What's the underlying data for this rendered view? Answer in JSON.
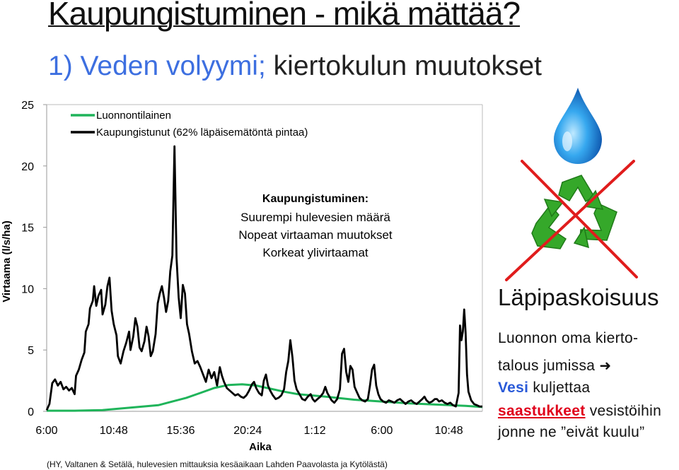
{
  "slide": {
    "title": "Kaupungistuminen - mikä mättää?",
    "subtitle_accent": "1) Veden volyymi;",
    "subtitle_rest": " kiertokulun muutokset",
    "source_note": "(HY, Valtanen & Setälä, hulevesien mittauksia kesäaikaan Lahden Paavolasta ja Kytölästä)"
  },
  "side_panel": {
    "heading": "Läpipaskoisuus",
    "line1": "Luonnon oma kierto-",
    "line2": "talous jumissa",
    "line3_word": "Vesi",
    "line3_rest": " kuljettaa",
    "line4_word": "saastukkeet",
    "line4_rest": " vesistöihin",
    "line5": "jonne ne ”eivät kuulu”",
    "icons": [
      "water-drop-icon",
      "recycle-icon",
      "cross-out-icon",
      "arrow-right-icon"
    ],
    "colors": {
      "drop": "#1a8fe0",
      "recycle": "#35a82a",
      "cross": "#e01c1c"
    }
  },
  "chart_data": {
    "type": "line",
    "xlabel": "Aika",
    "ylabel": "Virtaama (l/s/ha)",
    "x_ticks": [
      "6:00",
      "10:48",
      "15:36",
      "20:24",
      "1:12",
      "6:00",
      "10:48"
    ],
    "x_range_hours": [
      0,
      31.2
    ],
    "y_ticks": [
      "0",
      "5",
      "10",
      "15",
      "20",
      "25"
    ],
    "ylim": [
      0,
      25
    ],
    "grid": false,
    "legend": "top-left",
    "annotation": {
      "title": "Kaupungistuminen:",
      "lines": [
        "Suurempi hulevesien määrä",
        "Nopeat virtaaman muutokset",
        "Korkeat ylivirtaamat"
      ]
    },
    "series": [
      {
        "name": "Luonnontilainen",
        "color": "#1fb45a",
        "points": [
          [
            0,
            0.05
          ],
          [
            2,
            0.05
          ],
          [
            4,
            0.1
          ],
          [
            6,
            0.3
          ],
          [
            8,
            0.5
          ],
          [
            9,
            0.8
          ],
          [
            10,
            1.1
          ],
          [
            11,
            1.5
          ],
          [
            12,
            1.9
          ],
          [
            13,
            2.15
          ],
          [
            14,
            2.2
          ],
          [
            15,
            2.1
          ],
          [
            16,
            1.85
          ],
          [
            17,
            1.6
          ],
          [
            18,
            1.4
          ],
          [
            20,
            1.2
          ],
          [
            22,
            0.95
          ],
          [
            24,
            0.8
          ],
          [
            26,
            0.65
          ],
          [
            28,
            0.55
          ],
          [
            30,
            0.45
          ],
          [
            31.2,
            0.35
          ]
        ]
      },
      {
        "name": "Kaupungistunut (62% läpäisemätöntä pintaa)",
        "color": "#000000",
        "points": [
          [
            0,
            0.1
          ],
          [
            0.2,
            0.6
          ],
          [
            0.4,
            2.3
          ],
          [
            0.6,
            2.6
          ],
          [
            0.8,
            2.1
          ],
          [
            1.0,
            2.4
          ],
          [
            1.2,
            1.8
          ],
          [
            1.4,
            2.0
          ],
          [
            1.6,
            1.7
          ],
          [
            1.8,
            1.9
          ],
          [
            2.0,
            1.4
          ],
          [
            2.1,
            2.9
          ],
          [
            2.3,
            3.4
          ],
          [
            2.5,
            4.2
          ],
          [
            2.7,
            4.8
          ],
          [
            2.8,
            6.5
          ],
          [
            3.0,
            7.1
          ],
          [
            3.1,
            8.4
          ],
          [
            3.3,
            9.0
          ],
          [
            3.4,
            10.2
          ],
          [
            3.55,
            8.6
          ],
          [
            3.7,
            9.4
          ],
          [
            3.9,
            9.9
          ],
          [
            4.0,
            7.9
          ],
          [
            4.2,
            8.7
          ],
          [
            4.35,
            10.2
          ],
          [
            4.5,
            10.9
          ],
          [
            4.65,
            8.2
          ],
          [
            4.8,
            7.1
          ],
          [
            5.0,
            6.2
          ],
          [
            5.1,
            4.5
          ],
          [
            5.3,
            3.9
          ],
          [
            5.5,
            4.9
          ],
          [
            5.7,
            5.6
          ],
          [
            5.9,
            6.5
          ],
          [
            6.0,
            5.0
          ],
          [
            6.2,
            6.1
          ],
          [
            6.35,
            7.6
          ],
          [
            6.5,
            6.9
          ],
          [
            6.65,
            5.2
          ],
          [
            6.8,
            4.9
          ],
          [
            7.0,
            5.7
          ],
          [
            7.15,
            6.9
          ],
          [
            7.3,
            6.1
          ],
          [
            7.45,
            4.5
          ],
          [
            7.6,
            4.9
          ],
          [
            7.8,
            6.3
          ],
          [
            7.95,
            8.8
          ],
          [
            8.1,
            9.6
          ],
          [
            8.25,
            10.2
          ],
          [
            8.4,
            9.3
          ],
          [
            8.55,
            8.1
          ],
          [
            8.7,
            9.0
          ],
          [
            8.85,
            11.4
          ],
          [
            9.0,
            12.7
          ],
          [
            9.15,
            21.6
          ],
          [
            9.3,
            12.5
          ],
          [
            9.45,
            9.3
          ],
          [
            9.6,
            7.6
          ],
          [
            9.75,
            10.3
          ],
          [
            9.9,
            9.6
          ],
          [
            10.05,
            7.1
          ],
          [
            10.2,
            6.3
          ],
          [
            10.4,
            4.9
          ],
          [
            10.6,
            3.9
          ],
          [
            10.8,
            4.1
          ],
          [
            11.0,
            3.6
          ],
          [
            11.2,
            3.0
          ],
          [
            11.4,
            2.4
          ],
          [
            11.6,
            3.4
          ],
          [
            11.8,
            2.7
          ],
          [
            12.0,
            3.2
          ],
          [
            12.2,
            2.1
          ],
          [
            12.4,
            3.6
          ],
          [
            12.55,
            2.9
          ],
          [
            12.7,
            2.4
          ],
          [
            12.9,
            1.9
          ],
          [
            13.1,
            1.7
          ],
          [
            13.3,
            1.5
          ],
          [
            13.5,
            1.3
          ],
          [
            13.7,
            1.4
          ],
          [
            13.9,
            1.2
          ],
          [
            14.1,
            1.1
          ],
          [
            14.3,
            1.3
          ],
          [
            14.5,
            1.7
          ],
          [
            14.7,
            2.2
          ],
          [
            14.85,
            2.4
          ],
          [
            15.0,
            1.9
          ],
          [
            15.2,
            1.5
          ],
          [
            15.4,
            1.3
          ],
          [
            15.55,
            2.5
          ],
          [
            15.7,
            3.0
          ],
          [
            15.85,
            2.1
          ],
          [
            16.0,
            1.7
          ],
          [
            16.2,
            1.3
          ],
          [
            16.4,
            1.0
          ],
          [
            16.6,
            1.1
          ],
          [
            16.8,
            1.3
          ],
          [
            17.0,
            1.8
          ],
          [
            17.15,
            3.2
          ],
          [
            17.3,
            4.1
          ],
          [
            17.45,
            5.8
          ],
          [
            17.6,
            4.4
          ],
          [
            17.75,
            2.5
          ],
          [
            17.9,
            1.8
          ],
          [
            18.1,
            1.4
          ],
          [
            18.3,
            1.0
          ],
          [
            18.5,
            0.9
          ],
          [
            18.7,
            1.2
          ],
          [
            18.9,
            1.4
          ],
          [
            19.05,
            1.0
          ],
          [
            19.2,
            0.8
          ],
          [
            19.4,
            1.0
          ],
          [
            19.6,
            1.2
          ],
          [
            19.8,
            1.5
          ],
          [
            19.95,
            2.0
          ],
          [
            20.1,
            1.5
          ],
          [
            20.25,
            1.2
          ],
          [
            20.4,
            0.9
          ],
          [
            20.6,
            0.7
          ],
          [
            20.8,
            1.0
          ],
          [
            21.0,
            1.8
          ],
          [
            21.15,
            4.7
          ],
          [
            21.3,
            5.1
          ],
          [
            21.45,
            3.2
          ],
          [
            21.6,
            2.4
          ],
          [
            21.75,
            3.7
          ],
          [
            21.9,
            3.4
          ],
          [
            22.05,
            2.0
          ],
          [
            22.2,
            1.6
          ],
          [
            22.4,
            1.1
          ],
          [
            22.6,
            0.9
          ],
          [
            22.8,
            0.8
          ],
          [
            23.0,
            1.0
          ],
          [
            23.15,
            2.1
          ],
          [
            23.3,
            3.4
          ],
          [
            23.45,
            3.8
          ],
          [
            23.6,
            2.1
          ],
          [
            23.75,
            1.4
          ],
          [
            23.9,
            1.0
          ],
          [
            24.1,
            0.8
          ],
          [
            24.3,
            0.7
          ],
          [
            24.5,
            0.9
          ],
          [
            24.7,
            0.8
          ],
          [
            24.9,
            0.7
          ],
          [
            25.1,
            0.9
          ],
          [
            25.3,
            1.0
          ],
          [
            25.5,
            0.8
          ],
          [
            25.7,
            0.6
          ],
          [
            25.9,
            0.8
          ],
          [
            26.1,
            0.9
          ],
          [
            26.3,
            0.7
          ],
          [
            26.5,
            0.6
          ],
          [
            26.7,
            0.8
          ],
          [
            26.9,
            1.0
          ],
          [
            27.05,
            1.2
          ],
          [
            27.2,
            0.9
          ],
          [
            27.4,
            0.7
          ],
          [
            27.6,
            0.8
          ],
          [
            27.8,
            1.0
          ],
          [
            27.95,
            1.0
          ],
          [
            28.1,
            0.8
          ],
          [
            28.3,
            0.9
          ],
          [
            28.5,
            0.7
          ],
          [
            28.7,
            0.6
          ],
          [
            28.9,
            0.7
          ],
          [
            29.1,
            0.5
          ],
          [
            29.3,
            0.4
          ],
          [
            29.5,
            1.5
          ],
          [
            29.6,
            7.0
          ],
          [
            29.7,
            5.8
          ],
          [
            29.8,
            6.5
          ],
          [
            29.9,
            8.3
          ],
          [
            30.0,
            6.4
          ],
          [
            30.1,
            3.0
          ],
          [
            30.2,
            1.6
          ],
          [
            30.4,
            0.9
          ],
          [
            30.6,
            0.6
          ],
          [
            30.8,
            0.5
          ],
          [
            31.0,
            0.4
          ],
          [
            31.2,
            0.4
          ]
        ]
      }
    ]
  }
}
